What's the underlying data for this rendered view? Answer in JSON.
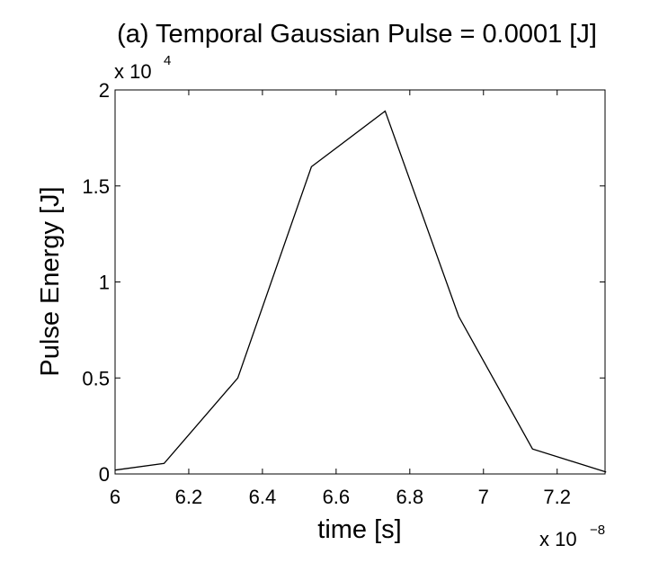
{
  "chart_data": {
    "type": "line",
    "title": "(a) Temporal Gaussian Pulse = 0.0001 [J]",
    "xlabel": "time [s]",
    "ylabel": "Pulse Energy [J]",
    "x_multiplier_base": "x 10",
    "x_multiplier_exp": "−8",
    "y_multiplier_base": "x 10",
    "y_multiplier_exp": "4",
    "xlim": [
      6.0,
      7.33
    ],
    "ylim": [
      0,
      2
    ],
    "x_ticks": [
      6.0,
      6.2,
      6.4,
      6.6,
      6.8,
      7.0,
      7.2
    ],
    "x_tick_labels": [
      "6",
      "6.2",
      "6.4",
      "6.6",
      "6.8",
      "7",
      "7.2"
    ],
    "y_ticks": [
      0,
      0.5,
      1,
      1.5,
      2
    ],
    "y_tick_labels": [
      "0",
      "0.5",
      "1",
      "1.5",
      "2"
    ],
    "grid": false,
    "line_color": "#000000",
    "series": [
      {
        "x": [
          6.0,
          6.133,
          6.333,
          6.533,
          6.733,
          6.933,
          7.133,
          7.333
        ],
        "values": [
          0.02,
          0.055,
          0.5,
          1.6,
          1.89,
          0.82,
          0.13,
          0.01
        ]
      }
    ]
  }
}
